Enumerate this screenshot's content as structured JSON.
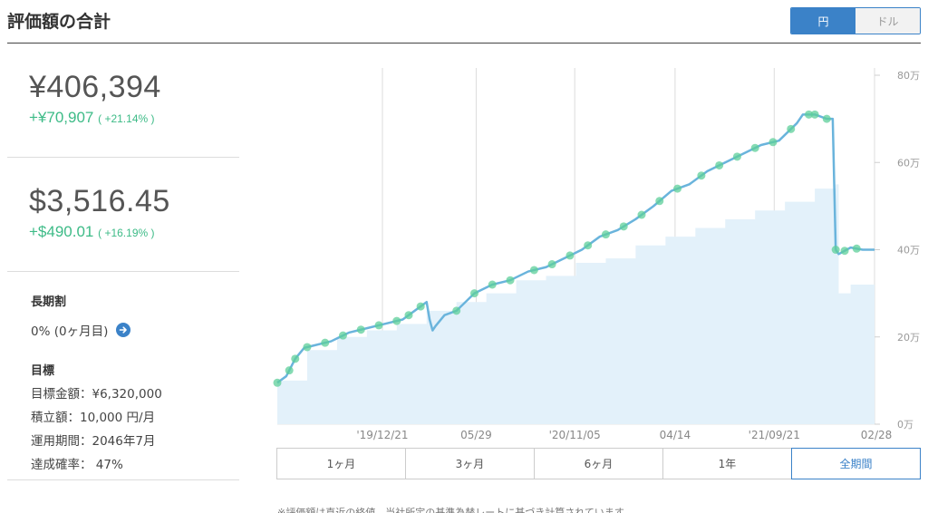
{
  "header": {
    "title": "評価額の合計"
  },
  "currency_toggle": {
    "options": [
      {
        "label": "円",
        "active": true
      },
      {
        "label": "ドル",
        "active": false
      }
    ]
  },
  "summary": {
    "yen": {
      "value": "¥406,394",
      "change": "+¥70,907",
      "change_pct": "( +21.14% )"
    },
    "usd": {
      "value": "$3,516.45",
      "change": "+$490.01",
      "change_pct": "( +16.19% )"
    },
    "long_term": {
      "label": "長期割",
      "value": "0% (0ヶ月目)"
    },
    "goal": {
      "label": "目標",
      "lines": [
        "目標金額：¥6,320,000",
        "積立額：10,000 円/月",
        "運用期間：2046年7月",
        "達成確率： 47%"
      ]
    }
  },
  "range_tabs": [
    {
      "label": "1ヶ月",
      "active": false
    },
    {
      "label": "3ヶ月",
      "active": false
    },
    {
      "label": "6ヶ月",
      "active": false
    },
    {
      "label": "1年",
      "active": false
    },
    {
      "label": "全期間",
      "active": true
    }
  ],
  "footnote": "※評価額は直近の終値、当社所定の基準為替レートに基づき計算されています",
  "colors": {
    "accent": "#3b82c8",
    "line": "#6ab4dc",
    "area": "#e3f1fa",
    "gain": "#3dbb87",
    "marker": "#5ecf9a"
  },
  "chart_data": {
    "type": "line",
    "x_tick_labels": [
      "'19/12/21",
      "05/29",
      "'20/11/05",
      "04/14",
      "'21/09/21",
      "02/28"
    ],
    "x_tick_pos": [
      0.176,
      0.333,
      0.498,
      0.666,
      0.832,
      1.0
    ],
    "y_ticks": [
      0,
      200000,
      400000,
      600000,
      800000
    ],
    "y_tick_labels": [
      "0万",
      "20万",
      "40万",
      "60万",
      "80万"
    ],
    "ylim": [
      0,
      800000
    ],
    "grid": true,
    "series": [
      {
        "type": "line",
        "x": [
          0,
          0.015,
          0.03,
          0.045,
          0.06,
          0.09,
          0.12,
          0.15,
          0.18,
          0.21,
          0.24,
          0.25,
          0.255,
          0.26,
          0.265,
          0.28,
          0.3,
          0.33,
          0.36,
          0.39,
          0.42,
          0.45,
          0.48,
          0.51,
          0.54,
          0.57,
          0.6,
          0.63,
          0.66,
          0.69,
          0.72,
          0.75,
          0.78,
          0.81,
          0.84,
          0.87,
          0.88,
          0.9,
          0.91,
          0.92,
          0.93,
          0.935,
          0.94,
          0.96,
          0.98,
          1.0
        ],
        "y": [
          95000,
          110000,
          150000,
          175000,
          180000,
          190000,
          210000,
          220000,
          230000,
          240000,
          270000,
          280000,
          240000,
          215000,
          225000,
          250000,
          260000,
          300000,
          320000,
          330000,
          350000,
          360000,
          380000,
          400000,
          430000,
          445000,
          470000,
          500000,
          535000,
          550000,
          580000,
          600000,
          620000,
          640000,
          650000,
          690000,
          710000,
          710000,
          705000,
          700000,
          700000,
          400000,
          390000,
          405000,
          400000,
          400000
        ]
      },
      {
        "type": "step-area",
        "x": [
          0,
          0.05,
          0.1,
          0.15,
          0.2,
          0.25,
          0.3,
          0.35,
          0.4,
          0.45,
          0.5,
          0.55,
          0.6,
          0.65,
          0.7,
          0.75,
          0.8,
          0.85,
          0.9,
          0.935,
          0.94,
          0.96,
          1.0
        ],
        "y": [
          100000,
          170000,
          200000,
          215000,
          230000,
          260000,
          280000,
          300000,
          330000,
          340000,
          370000,
          380000,
          410000,
          430000,
          450000,
          470000,
          490000,
          510000,
          540000,
          550000,
          300000,
          320000,
          330000
        ]
      }
    ],
    "marker_x": [
      0.0,
      0.02,
      0.03,
      0.05,
      0.08,
      0.11,
      0.14,
      0.17,
      0.2,
      0.22,
      0.24,
      0.3,
      0.33,
      0.36,
      0.39,
      0.43,
      0.46,
      0.49,
      0.52,
      0.55,
      0.58,
      0.61,
      0.64,
      0.67,
      0.71,
      0.74,
      0.77,
      0.8,
      0.83,
      0.86,
      0.89,
      0.9,
      0.92,
      0.935,
      0.95,
      0.97
    ]
  }
}
